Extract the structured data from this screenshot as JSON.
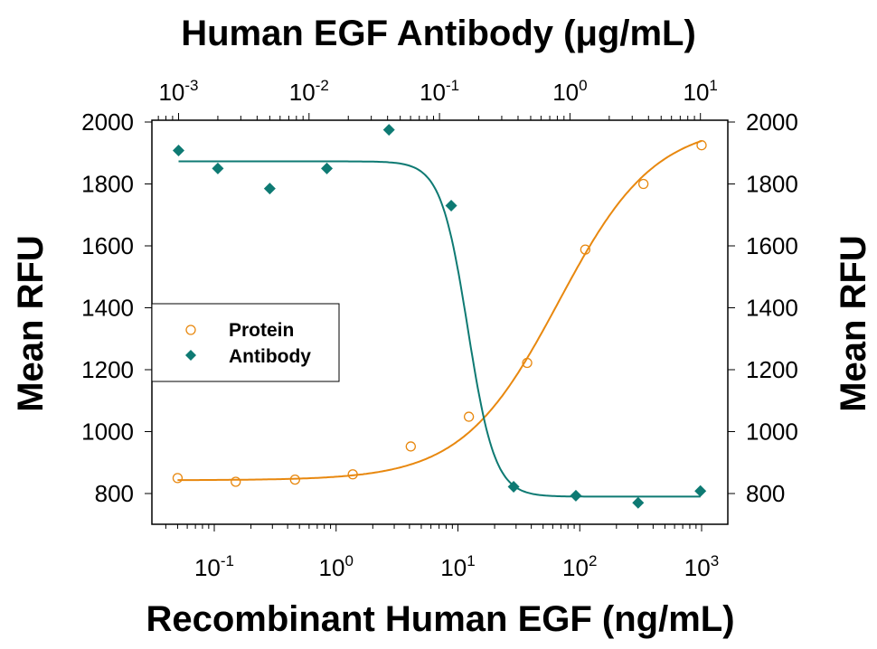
{
  "chart_data": {
    "type": "scatter",
    "title": "Human EGF Antibody (μg/mL)",
    "xlabel": "Recombinant Human EGF (ng/mL)",
    "ylabel": "Mean RFU",
    "ylabel_right": "Mean RFU",
    "x_scale": "log",
    "xlim": [
      0.035,
      1500
    ],
    "x2_scale": "log",
    "x2lim": [
      0.0007,
      15
    ],
    "ylim": [
      700,
      2000
    ],
    "x_ticks": [
      {
        "base": "10",
        "exp": "-1",
        "value": 0.1
      },
      {
        "base": "10",
        "exp": "0",
        "value": 1
      },
      {
        "base": "10",
        "exp": "1",
        "value": 10
      },
      {
        "base": "10",
        "exp": "2",
        "value": 100
      },
      {
        "base": "10",
        "exp": "3",
        "value": 1000
      }
    ],
    "x2_ticks": [
      {
        "base": "10",
        "exp": "-3",
        "value": 0.001
      },
      {
        "base": "10",
        "exp": "-2",
        "value": 0.01
      },
      {
        "base": "10",
        "exp": "-1",
        "value": 0.1
      },
      {
        "base": "10",
        "exp": "0",
        "value": 1
      },
      {
        "base": "10",
        "exp": "1",
        "value": 10
      }
    ],
    "y_ticks": [
      "800",
      "1000",
      "1200",
      "1400",
      "1600",
      "1800",
      "2000"
    ],
    "grid": false,
    "legend_position": "center-left",
    "series": [
      {
        "name": "Protein",
        "axis": "bottom",
        "marker": "open-circle",
        "color": "#E8880F",
        "x": [
          0.05,
          0.15,
          0.46,
          1.37,
          4.1,
          12.3,
          37,
          111,
          333,
          1000
        ],
        "y": [
          850,
          838,
          845,
          862,
          952,
          1048,
          1222,
          1588,
          1800,
          1925
        ],
        "fit": {
          "bottom": 843,
          "top": 1995,
          "ec50": 67,
          "hill": 1.1
        }
      },
      {
        "name": "Antibody",
        "axis": "top",
        "marker": "filled-diamond",
        "color": "#0E7A73",
        "x": [
          0.001,
          0.002,
          0.005,
          0.0137,
          0.041,
          0.123,
          0.37,
          1.11,
          3.33,
          10
        ],
        "y": [
          1908,
          1850,
          1785,
          1850,
          1975,
          1730,
          822,
          793,
          770,
          808
        ],
        "fit": {
          "bottom": 790,
          "top": 1873,
          "ec50": 0.165,
          "hill": -4.2
        }
      }
    ]
  }
}
